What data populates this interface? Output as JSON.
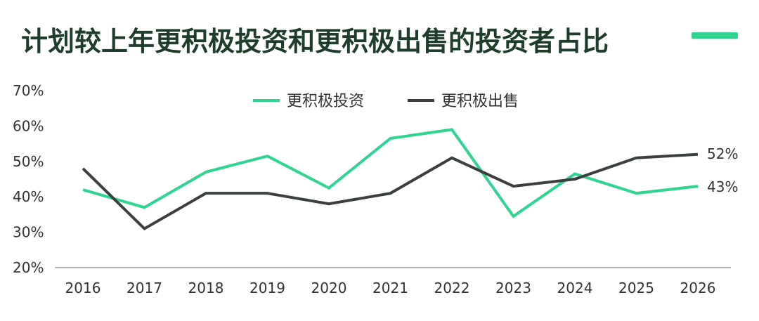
{
  "chart_data": {
    "type": "line",
    "title": "计划较上年更积极投资和更积极出售的投资者占比",
    "categories": [
      "2016",
      "2017",
      "2018",
      "2019",
      "2020",
      "2021",
      "2022",
      "2023",
      "2024",
      "2025",
      "2026"
    ],
    "series": [
      {
        "name": "更积极投资",
        "color": "#2ed48f",
        "values": [
          42,
          37,
          47,
          51.5,
          42.5,
          56.5,
          59,
          34.5,
          46.5,
          41,
          43
        ]
      },
      {
        "name": "更积极出售",
        "color": "#3a403d",
        "values": [
          48,
          31,
          41,
          41,
          38,
          41,
          51,
          43,
          45,
          51,
          52
        ]
      }
    ],
    "yticks": [
      "20%",
      "30%",
      "40%",
      "50%",
      "60%",
      "70%"
    ],
    "ylim": [
      20,
      70
    ],
    "end_labels": {
      "series0": "43%",
      "series1": "52%"
    },
    "legend_position": "top-center"
  }
}
